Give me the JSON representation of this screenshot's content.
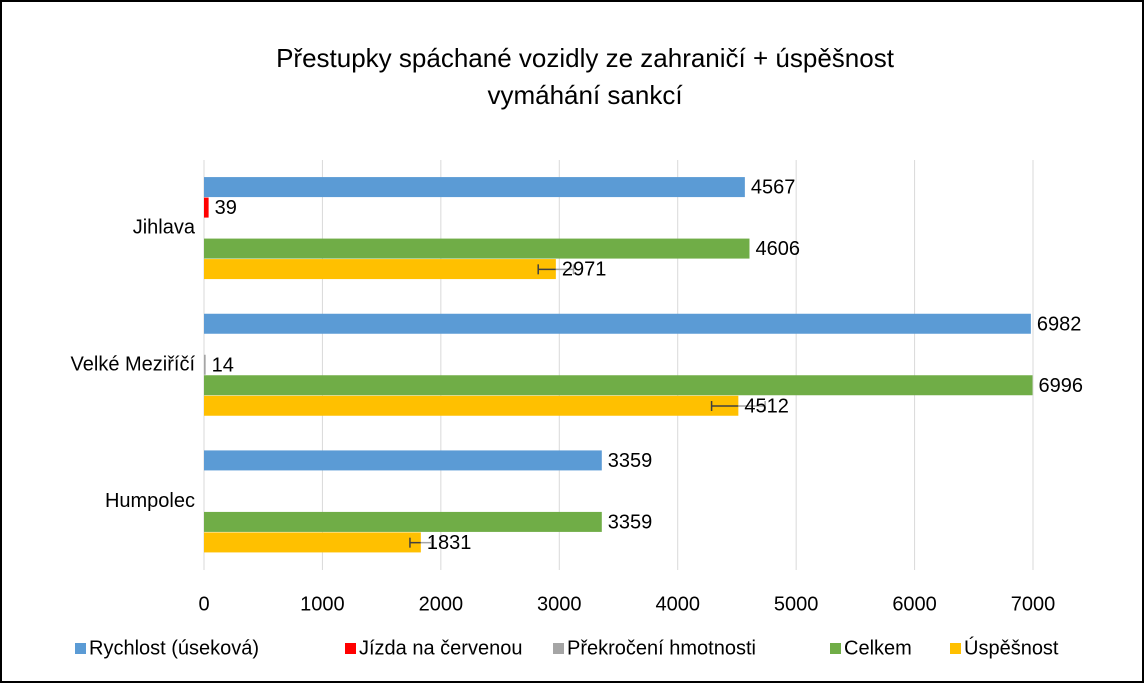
{
  "chart_data": {
    "type": "hbar",
    "title": "Přestupky spáchané vozidly ze zahraničí + úspěšnost",
    "subtitle": "vymáhání sankcí",
    "categories": [
      "Jihlava",
      "Velké Meziříčí",
      "Humpolec"
    ],
    "series": [
      {
        "name": "Rychlost (úseková)",
        "color": "#5b9bd5",
        "values": [
          4567,
          6982,
          3359
        ]
      },
      {
        "name": "Jízda na červenou",
        "color": "#ff0000",
        "values": [
          39,
          null,
          null
        ]
      },
      {
        "name": "Překročení hmotnosti",
        "color": "#a5a5a5",
        "values": [
          null,
          14,
          null
        ]
      },
      {
        "name": "Celkem",
        "color": "#70ad47",
        "values": [
          4606,
          6996,
          3359
        ]
      },
      {
        "name": "Úspěšnost",
        "color": "#ffc000",
        "values": [
          2971,
          4512,
          1831
        ],
        "errors": [
          149,
          226,
          92
        ]
      }
    ],
    "xlim": [
      0,
      7000
    ],
    "xticks": [
      0,
      1000,
      2000,
      3000,
      4000,
      5000,
      6000,
      7000
    ],
    "grid": true,
    "legend": "bottom"
  }
}
